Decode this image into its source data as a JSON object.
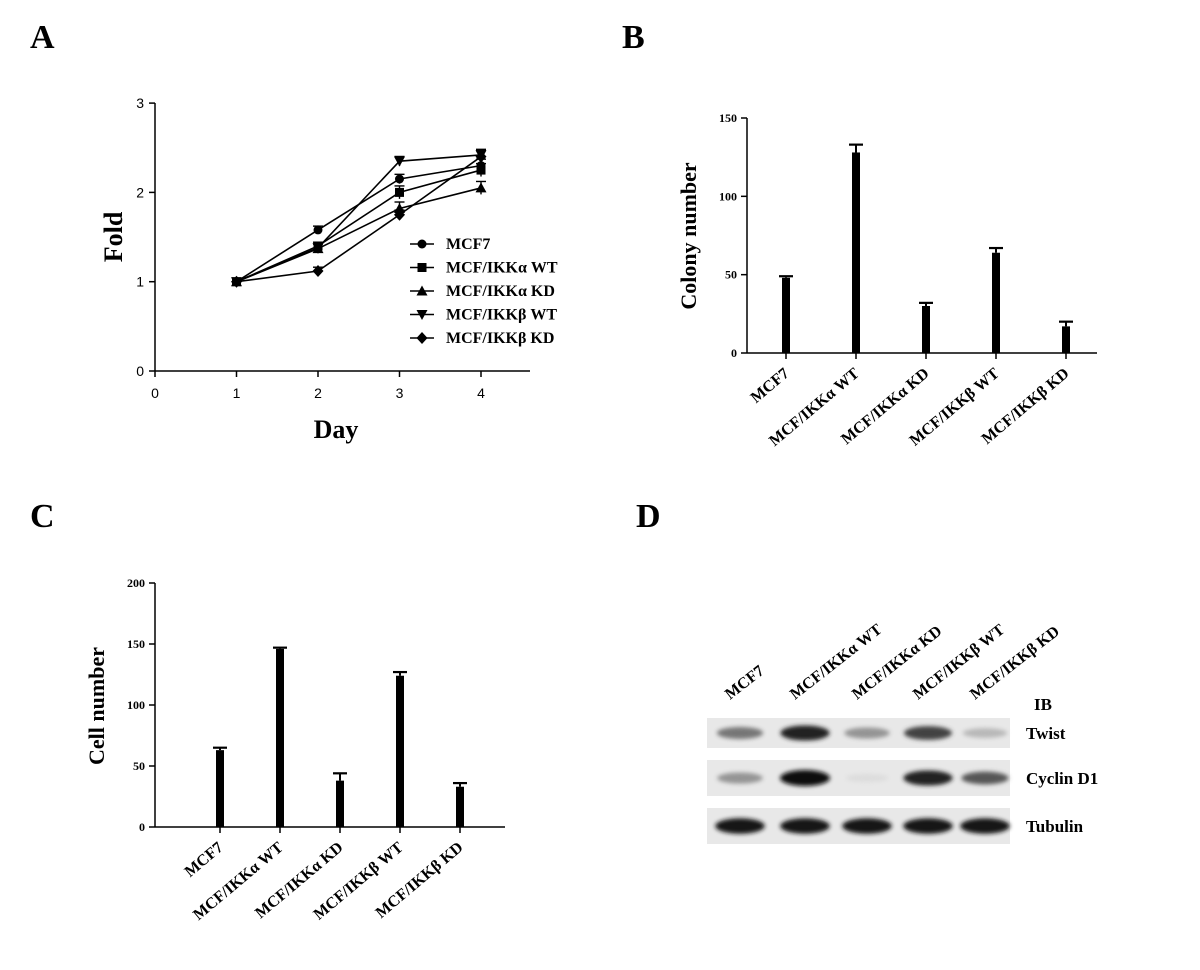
{
  "panels": {
    "a": "A",
    "b": "B",
    "c": "C",
    "d": "D"
  },
  "chart_data": [
    {
      "id": "A",
      "type": "line",
      "title": "",
      "xlabel": "Day",
      "ylabel": "Fold",
      "xlim": [
        0,
        4.6
      ],
      "ylim": [
        0,
        3
      ],
      "xticks": [
        "0",
        "1",
        "2",
        "3",
        "4"
      ],
      "yticks": [
        "0",
        "1",
        "2",
        "3"
      ],
      "x": [
        1,
        2,
        3,
        4
      ],
      "series": [
        {
          "name": "MCF7",
          "marker": "circle",
          "values": [
            1.0,
            1.58,
            2.15,
            2.3
          ],
          "err": [
            0,
            0.02,
            0.03,
            0.05
          ]
        },
        {
          "name": "MCF/IKKα WT",
          "marker": "square",
          "values": [
            1.0,
            1.4,
            2.0,
            2.25
          ],
          "err": [
            0,
            0.02,
            0.05,
            0.05
          ]
        },
        {
          "name": "MCF/IKKα KD",
          "marker": "triangle",
          "values": [
            1.0,
            1.37,
            1.82,
            2.05
          ],
          "err": [
            0,
            0.03,
            0.05,
            0.05
          ]
        },
        {
          "name": "MCF/IKKβ WT",
          "marker": "triangle-down",
          "values": [
            1.0,
            1.38,
            2.35,
            2.42
          ],
          "err": [
            0,
            0.02,
            0.03,
            0.04
          ]
        },
        {
          "name": "MCF/IKKβ KD",
          "marker": "diamond",
          "values": [
            1.0,
            1.12,
            1.75,
            2.4
          ],
          "err": [
            0,
            0.02,
            0.03,
            0.05
          ]
        }
      ],
      "legend_position": "center-right"
    },
    {
      "id": "B",
      "type": "bar",
      "ylabel": "Colony number",
      "ylim": [
        0,
        150
      ],
      "yticks": [
        "0",
        "50",
        "100",
        "150"
      ],
      "categories": [
        "MCF7",
        "MCF/IKKα WT",
        "MCF/IKKα KD",
        "MCF/IKKβ WT",
        "MCF/IKKβ KD"
      ],
      "values": [
        48,
        128,
        30,
        64,
        17
      ],
      "err": [
        1,
        5,
        2,
        3,
        3
      ]
    },
    {
      "id": "C",
      "type": "bar",
      "ylabel": "Cell number",
      "ylim": [
        0,
        200
      ],
      "yticks": [
        "0",
        "50",
        "100",
        "150",
        "200"
      ],
      "categories": [
        "MCF7",
        "MCF/IKKα WT",
        "MCF/IKKα KD",
        "MCF/IKKβ WT",
        "MCF/IKKβ KD"
      ],
      "values": [
        63,
        146,
        38,
        124,
        33
      ],
      "err": [
        2,
        1,
        6,
        3,
        3
      ]
    }
  ],
  "blot": {
    "lanes": [
      "MCF7",
      "MCF/IKKα WT",
      "MCF/IKKα KD",
      "MCF/IKKβ WT",
      "MCF/IKKβ KD"
    ],
    "ib_label": "IB",
    "rows": [
      {
        "label": "Twist",
        "intensities": [
          0.55,
          0.9,
          0.45,
          0.75,
          0.3
        ]
      },
      {
        "label": "Cyclin D1",
        "intensities": [
          0.45,
          1.0,
          0.08,
          0.9,
          0.65
        ]
      },
      {
        "label": "Tubulin",
        "intensities": [
          0.95,
          0.95,
          0.95,
          0.95,
          0.95
        ]
      }
    ]
  }
}
